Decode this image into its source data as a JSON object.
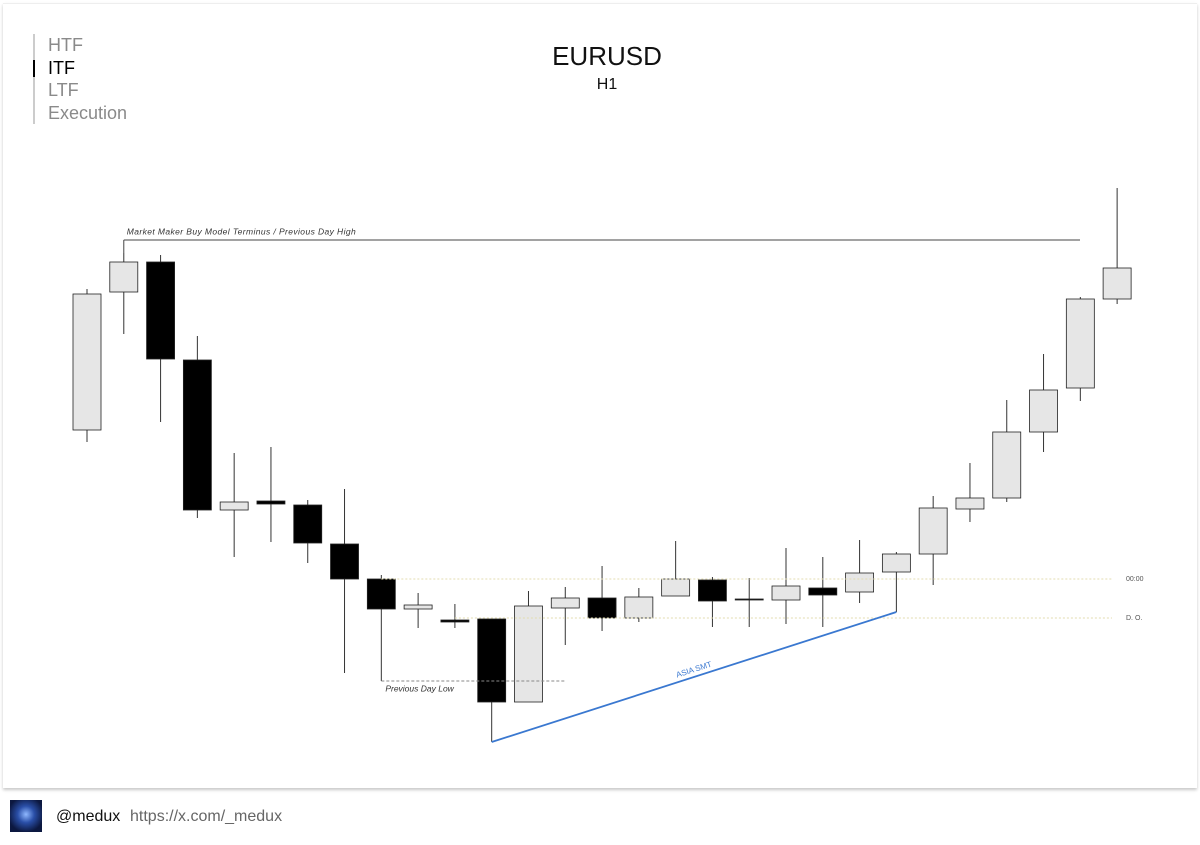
{
  "nav": {
    "items": [
      "HTF",
      "ITF",
      "LTF",
      "Execution"
    ],
    "active": 1
  },
  "chart_data": {
    "type": "candlestick",
    "title": "EURUSD",
    "subtitle": "H1",
    "open": [
      350,
      488,
      518,
      420,
      270,
      279,
      275,
      236,
      201,
      171,
      160,
      161,
      78,
      172,
      182,
      162,
      184,
      200,
      181,
      180,
      192,
      188,
      208,
      226,
      271,
      282,
      348,
      392,
      481
    ],
    "high": [
      491,
      527,
      525,
      444,
      327,
      333,
      280,
      291,
      205,
      187,
      176,
      161,
      189,
      193,
      214,
      192,
      239,
      203,
      202,
      232,
      223,
      240,
      228,
      284,
      317,
      380,
      426,
      483,
      592
    ],
    "low": [
      338,
      446,
      358,
      262,
      223,
      238,
      217,
      107,
      99,
      152,
      152,
      58,
      78,
      135,
      149,
      158,
      184,
      153,
      153,
      156,
      153,
      177,
      168,
      195,
      258,
      278,
      328,
      379,
      476
    ],
    "close": [
      486,
      518,
      421,
      270,
      278,
      276,
      237,
      201,
      171,
      175,
      158,
      78,
      174,
      182,
      162,
      183,
      201,
      179,
      180,
      194,
      185,
      207,
      226,
      272,
      282,
      348,
      390,
      481,
      512
    ],
    "up_color": "#e6e6e6",
    "down_color": "#000000",
    "ylim": [
      40,
      610
    ],
    "annotations": [
      {
        "text": "Market Maker Buy Model Terminus / Previous Day High",
        "value": 540
      },
      {
        "text": "Previous Day Low",
        "value": 99
      },
      {
        "text": "00:00",
        "value": 201
      },
      {
        "text": "D. O.",
        "value": 162
      },
      {
        "text": "ASIA SMT",
        "color": "#3a78d0"
      }
    ]
  },
  "footer": {
    "handle": "@medux",
    "url": "https://x.com/_medux"
  }
}
